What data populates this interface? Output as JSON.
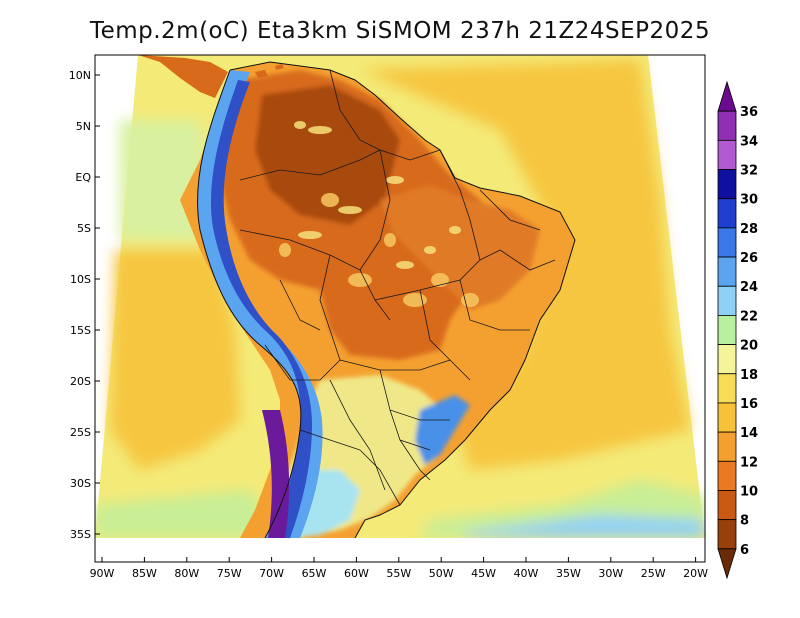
{
  "title": "Temp.2m(oC) Eta3km SiSMOM 237h 21Z24SEP2025",
  "lat_ticks": [
    "10N",
    "5N",
    "EQ",
    "5S",
    "10S",
    "15S",
    "20S",
    "25S",
    "30S",
    "35S"
  ],
  "lon_ticks": [
    "90W",
    "85W",
    "80W",
    "75W",
    "70W",
    "65W",
    "60W",
    "55W",
    "50W",
    "45W",
    "40W",
    "35W",
    "30W",
    "25W",
    "20W"
  ],
  "colorbar": {
    "labels": [
      "6",
      "8",
      "10",
      "12",
      "14",
      "16",
      "18",
      "20",
      "22",
      "24",
      "26",
      "28",
      "30",
      "32",
      "34",
      "36"
    ],
    "colors": [
      "#6a0a8f",
      "#8f30b4",
      "#b25ad2",
      "#1010a0",
      "#1f3fd0",
      "#3a78e8",
      "#5aa4f0",
      "#8fd0f6",
      "#b8f0a0",
      "#f4f49a",
      "#f8dc58",
      "#f7c238",
      "#f4a030",
      "#e87a22",
      "#c85a14",
      "#98400c",
      "#6a2a08"
    ]
  },
  "colors": {
    "ocean_warm": "#f6c640",
    "ocean_mild": "#f4ea78",
    "ocean_cool": "#c8ee96",
    "cold": "#4a90e8",
    "hot": "#d86a1c",
    "very_hot": "#a84810"
  }
}
